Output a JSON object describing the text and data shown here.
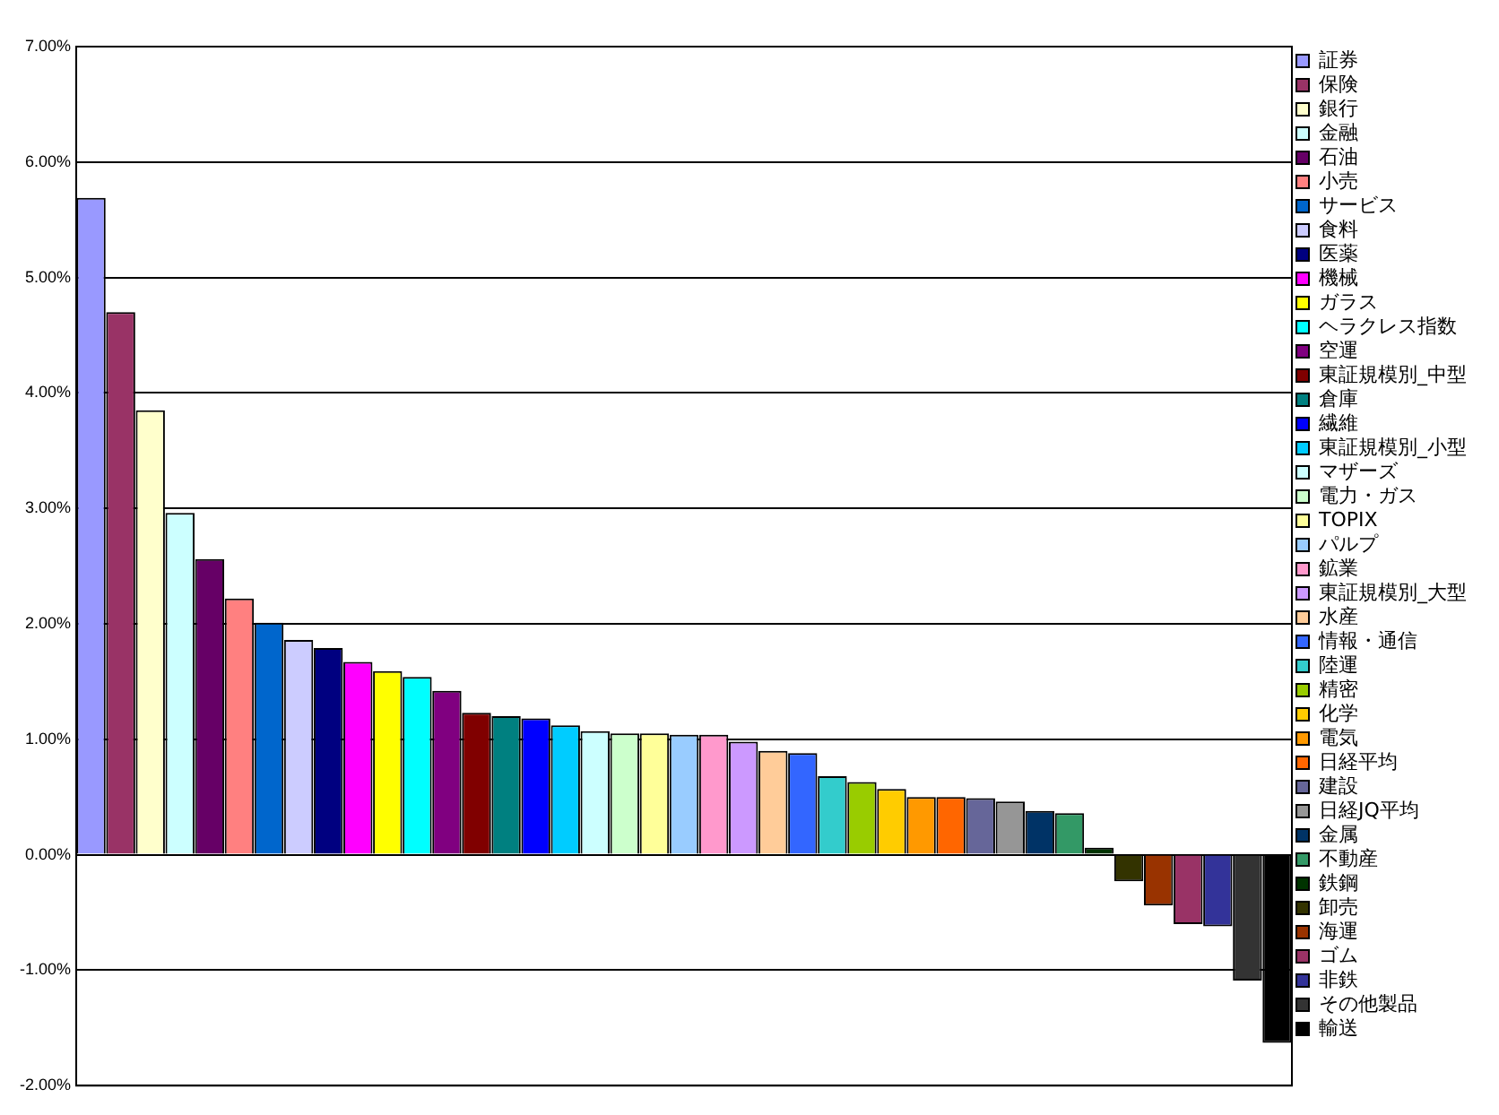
{
  "chart_data": {
    "type": "bar",
    "categories": [
      null,
      null,
      null,
      null,
      null,
      null,
      null,
      null,
      null,
      null,
      null,
      null,
      null,
      null,
      null,
      null,
      null,
      null,
      null,
      null,
      null,
      null,
      null,
      null,
      null,
      null,
      null,
      null,
      null,
      null,
      null,
      null,
      null,
      null,
      null,
      null,
      null,
      null,
      null,
      null,
      null
    ],
    "series": [
      {
        "name": "証券",
        "color": "#9999ff",
        "values": [
          5.69,
          null,
          null,
          null,
          null,
          null,
          null,
          null,
          null,
          null,
          null,
          null,
          null,
          null,
          null,
          null,
          null,
          null,
          null,
          null,
          null,
          null,
          null,
          null,
          null,
          null,
          null,
          null,
          null,
          null,
          null,
          null,
          null,
          null,
          null,
          null,
          null,
          null,
          null,
          null,
          null
        ]
      },
      {
        "name": "保険",
        "color": "#993366",
        "values": [
          null,
          4.7,
          null,
          null,
          null,
          null,
          null,
          null,
          null,
          null,
          null,
          null,
          null,
          null,
          null,
          null,
          null,
          null,
          null,
          null,
          null,
          null,
          null,
          null,
          null,
          null,
          null,
          null,
          null,
          null,
          null,
          null,
          null,
          null,
          null,
          null,
          null,
          null,
          null,
          null,
          null
        ]
      },
      {
        "name": "銀行",
        "color": "#ffffcc",
        "values": [
          null,
          null,
          3.85,
          null,
          null,
          null,
          null,
          null,
          null,
          null,
          null,
          null,
          null,
          null,
          null,
          null,
          null,
          null,
          null,
          null,
          null,
          null,
          null,
          null,
          null,
          null,
          null,
          null,
          null,
          null,
          null,
          null,
          null,
          null,
          null,
          null,
          null,
          null,
          null,
          null,
          null
        ]
      },
      {
        "name": "金融",
        "color": "#ccffff",
        "values": [
          null,
          null,
          null,
          2.96,
          null,
          null,
          null,
          null,
          null,
          null,
          null,
          null,
          null,
          null,
          null,
          null,
          null,
          null,
          null,
          null,
          null,
          null,
          null,
          null,
          null,
          null,
          null,
          null,
          null,
          null,
          null,
          null,
          null,
          null,
          null,
          null,
          null,
          null,
          null,
          null,
          null
        ]
      },
      {
        "name": "石油",
        "color": "#660066",
        "values": [
          null,
          null,
          null,
          null,
          2.56,
          null,
          null,
          null,
          null,
          null,
          null,
          null,
          null,
          null,
          null,
          null,
          null,
          null,
          null,
          null,
          null,
          null,
          null,
          null,
          null,
          null,
          null,
          null,
          null,
          null,
          null,
          null,
          null,
          null,
          null,
          null,
          null,
          null,
          null,
          null,
          null
        ]
      },
      {
        "name": "小売",
        "color": "#ff8080",
        "values": [
          null,
          null,
          null,
          null,
          null,
          2.22,
          null,
          null,
          null,
          null,
          null,
          null,
          null,
          null,
          null,
          null,
          null,
          null,
          null,
          null,
          null,
          null,
          null,
          null,
          null,
          null,
          null,
          null,
          null,
          null,
          null,
          null,
          null,
          null,
          null,
          null,
          null,
          null,
          null,
          null,
          null
        ]
      },
      {
        "name": "サービス",
        "color": "#0066cc",
        "values": [
          null,
          null,
          null,
          null,
          null,
          null,
          2.01,
          null,
          null,
          null,
          null,
          null,
          null,
          null,
          null,
          null,
          null,
          null,
          null,
          null,
          null,
          null,
          null,
          null,
          null,
          null,
          null,
          null,
          null,
          null,
          null,
          null,
          null,
          null,
          null,
          null,
          null,
          null,
          null,
          null,
          null
        ]
      },
      {
        "name": "食料",
        "color": "#ccccff",
        "values": [
          null,
          null,
          null,
          null,
          null,
          null,
          null,
          1.86,
          null,
          null,
          null,
          null,
          null,
          null,
          null,
          null,
          null,
          null,
          null,
          null,
          null,
          null,
          null,
          null,
          null,
          null,
          null,
          null,
          null,
          null,
          null,
          null,
          null,
          null,
          null,
          null,
          null,
          null,
          null,
          null,
          null
        ]
      },
      {
        "name": "医薬",
        "color": "#000080",
        "values": [
          null,
          null,
          null,
          null,
          null,
          null,
          null,
          null,
          1.79,
          null,
          null,
          null,
          null,
          null,
          null,
          null,
          null,
          null,
          null,
          null,
          null,
          null,
          null,
          null,
          null,
          null,
          null,
          null,
          null,
          null,
          null,
          null,
          null,
          null,
          null,
          null,
          null,
          null,
          null,
          null,
          null
        ]
      },
      {
        "name": "機械",
        "color": "#ff00ff",
        "values": [
          null,
          null,
          null,
          null,
          null,
          null,
          null,
          null,
          null,
          1.67,
          null,
          null,
          null,
          null,
          null,
          null,
          null,
          null,
          null,
          null,
          null,
          null,
          null,
          null,
          null,
          null,
          null,
          null,
          null,
          null,
          null,
          null,
          null,
          null,
          null,
          null,
          null,
          null,
          null,
          null,
          null
        ]
      },
      {
        "name": "ガラス",
        "color": "#ffff00",
        "values": [
          null,
          null,
          null,
          null,
          null,
          null,
          null,
          null,
          null,
          null,
          1.59,
          null,
          null,
          null,
          null,
          null,
          null,
          null,
          null,
          null,
          null,
          null,
          null,
          null,
          null,
          null,
          null,
          null,
          null,
          null,
          null,
          null,
          null,
          null,
          null,
          null,
          null,
          null,
          null,
          null,
          null
        ]
      },
      {
        "name": "ヘラクレス指数",
        "color": "#00ffff",
        "values": [
          null,
          null,
          null,
          null,
          null,
          null,
          null,
          null,
          null,
          null,
          null,
          1.54,
          null,
          null,
          null,
          null,
          null,
          null,
          null,
          null,
          null,
          null,
          null,
          null,
          null,
          null,
          null,
          null,
          null,
          null,
          null,
          null,
          null,
          null,
          null,
          null,
          null,
          null,
          null,
          null,
          null
        ]
      },
      {
        "name": "空運",
        "color": "#800080",
        "values": [
          null,
          null,
          null,
          null,
          null,
          null,
          null,
          null,
          null,
          null,
          null,
          null,
          1.42,
          null,
          null,
          null,
          null,
          null,
          null,
          null,
          null,
          null,
          null,
          null,
          null,
          null,
          null,
          null,
          null,
          null,
          null,
          null,
          null,
          null,
          null,
          null,
          null,
          null,
          null,
          null,
          null
        ]
      },
      {
        "name": "東証規模別_中型",
        "color": "#800000",
        "values": [
          null,
          null,
          null,
          null,
          null,
          null,
          null,
          null,
          null,
          null,
          null,
          null,
          null,
          1.23,
          null,
          null,
          null,
          null,
          null,
          null,
          null,
          null,
          null,
          null,
          null,
          null,
          null,
          null,
          null,
          null,
          null,
          null,
          null,
          null,
          null,
          null,
          null,
          null,
          null,
          null,
          null
        ]
      },
      {
        "name": "倉庫",
        "color": "#008080",
        "values": [
          null,
          null,
          null,
          null,
          null,
          null,
          null,
          null,
          null,
          null,
          null,
          null,
          null,
          null,
          1.2,
          null,
          null,
          null,
          null,
          null,
          null,
          null,
          null,
          null,
          null,
          null,
          null,
          null,
          null,
          null,
          null,
          null,
          null,
          null,
          null,
          null,
          null,
          null,
          null,
          null,
          null
        ]
      },
      {
        "name": "繊維",
        "color": "#0000ff",
        "values": [
          null,
          null,
          null,
          null,
          null,
          null,
          null,
          null,
          null,
          null,
          null,
          null,
          null,
          null,
          null,
          1.18,
          null,
          null,
          null,
          null,
          null,
          null,
          null,
          null,
          null,
          null,
          null,
          null,
          null,
          null,
          null,
          null,
          null,
          null,
          null,
          null,
          null,
          null,
          null,
          null,
          null
        ]
      },
      {
        "name": "東証規模別_小型",
        "color": "#00ccff",
        "values": [
          null,
          null,
          null,
          null,
          null,
          null,
          null,
          null,
          null,
          null,
          null,
          null,
          null,
          null,
          null,
          null,
          1.12,
          null,
          null,
          null,
          null,
          null,
          null,
          null,
          null,
          null,
          null,
          null,
          null,
          null,
          null,
          null,
          null,
          null,
          null,
          null,
          null,
          null,
          null,
          null,
          null
        ]
      },
      {
        "name": "マザーズ",
        "color": "#ccffff",
        "values": [
          null,
          null,
          null,
          null,
          null,
          null,
          null,
          null,
          null,
          null,
          null,
          null,
          null,
          null,
          null,
          null,
          null,
          1.07,
          null,
          null,
          null,
          null,
          null,
          null,
          null,
          null,
          null,
          null,
          null,
          null,
          null,
          null,
          null,
          null,
          null,
          null,
          null,
          null,
          null,
          null,
          null
        ]
      },
      {
        "name": "電力・ガス",
        "color": "#ccffcc",
        "values": [
          null,
          null,
          null,
          null,
          null,
          null,
          null,
          null,
          null,
          null,
          null,
          null,
          null,
          null,
          null,
          null,
          null,
          null,
          1.05,
          null,
          null,
          null,
          null,
          null,
          null,
          null,
          null,
          null,
          null,
          null,
          null,
          null,
          null,
          null,
          null,
          null,
          null,
          null,
          null,
          null,
          null
        ]
      },
      {
        "name": "TOPIX",
        "color": "#ffff99",
        "values": [
          null,
          null,
          null,
          null,
          null,
          null,
          null,
          null,
          null,
          null,
          null,
          null,
          null,
          null,
          null,
          null,
          null,
          null,
          null,
          1.05,
          null,
          null,
          null,
          null,
          null,
          null,
          null,
          null,
          null,
          null,
          null,
          null,
          null,
          null,
          null,
          null,
          null,
          null,
          null,
          null,
          null
        ]
      },
      {
        "name": "パルプ",
        "color": "#99ccff",
        "values": [
          null,
          null,
          null,
          null,
          null,
          null,
          null,
          null,
          null,
          null,
          null,
          null,
          null,
          null,
          null,
          null,
          null,
          null,
          null,
          null,
          1.04,
          null,
          null,
          null,
          null,
          null,
          null,
          null,
          null,
          null,
          null,
          null,
          null,
          null,
          null,
          null,
          null,
          null,
          null,
          null,
          null
        ]
      },
      {
        "name": "鉱業",
        "color": "#ff99cc",
        "values": [
          null,
          null,
          null,
          null,
          null,
          null,
          null,
          null,
          null,
          null,
          null,
          null,
          null,
          null,
          null,
          null,
          null,
          null,
          null,
          null,
          null,
          1.04,
          null,
          null,
          null,
          null,
          null,
          null,
          null,
          null,
          null,
          null,
          null,
          null,
          null,
          null,
          null,
          null,
          null,
          null,
          null
        ]
      },
      {
        "name": "東証規模別_大型",
        "color": "#cc99ff",
        "values": [
          null,
          null,
          null,
          null,
          null,
          null,
          null,
          null,
          null,
          null,
          null,
          null,
          null,
          null,
          null,
          null,
          null,
          null,
          null,
          null,
          null,
          null,
          0.98,
          null,
          null,
          null,
          null,
          null,
          null,
          null,
          null,
          null,
          null,
          null,
          null,
          null,
          null,
          null,
          null,
          null,
          null
        ]
      },
      {
        "name": "水産",
        "color": "#ffcc99",
        "values": [
          null,
          null,
          null,
          null,
          null,
          null,
          null,
          null,
          null,
          null,
          null,
          null,
          null,
          null,
          null,
          null,
          null,
          null,
          null,
          null,
          null,
          null,
          null,
          0.9,
          null,
          null,
          null,
          null,
          null,
          null,
          null,
          null,
          null,
          null,
          null,
          null,
          null,
          null,
          null,
          null,
          null
        ]
      },
      {
        "name": "情報・通信",
        "color": "#3366ff",
        "values": [
          null,
          null,
          null,
          null,
          null,
          null,
          null,
          null,
          null,
          null,
          null,
          null,
          null,
          null,
          null,
          null,
          null,
          null,
          null,
          null,
          null,
          null,
          null,
          null,
          0.88,
          null,
          null,
          null,
          null,
          null,
          null,
          null,
          null,
          null,
          null,
          null,
          null,
          null,
          null,
          null,
          null
        ]
      },
      {
        "name": "陸運",
        "color": "#33cccc",
        "values": [
          null,
          null,
          null,
          null,
          null,
          null,
          null,
          null,
          null,
          null,
          null,
          null,
          null,
          null,
          null,
          null,
          null,
          null,
          null,
          null,
          null,
          null,
          null,
          null,
          null,
          0.68,
          null,
          null,
          null,
          null,
          null,
          null,
          null,
          null,
          null,
          null,
          null,
          null,
          null,
          null,
          null
        ]
      },
      {
        "name": "精密",
        "color": "#99cc00",
        "values": [
          null,
          null,
          null,
          null,
          null,
          null,
          null,
          null,
          null,
          null,
          null,
          null,
          null,
          null,
          null,
          null,
          null,
          null,
          null,
          null,
          null,
          null,
          null,
          null,
          null,
          null,
          0.63,
          null,
          null,
          null,
          null,
          null,
          null,
          null,
          null,
          null,
          null,
          null,
          null,
          null,
          null
        ]
      },
      {
        "name": "化学",
        "color": "#ffcc00",
        "values": [
          null,
          null,
          null,
          null,
          null,
          null,
          null,
          null,
          null,
          null,
          null,
          null,
          null,
          null,
          null,
          null,
          null,
          null,
          null,
          null,
          null,
          null,
          null,
          null,
          null,
          null,
          null,
          0.57,
          null,
          null,
          null,
          null,
          null,
          null,
          null,
          null,
          null,
          null,
          null,
          null,
          null
        ]
      },
      {
        "name": "電気",
        "color": "#ff9900",
        "values": [
          null,
          null,
          null,
          null,
          null,
          null,
          null,
          null,
          null,
          null,
          null,
          null,
          null,
          null,
          null,
          null,
          null,
          null,
          null,
          null,
          null,
          null,
          null,
          null,
          null,
          null,
          null,
          null,
          0.5,
          null,
          null,
          null,
          null,
          null,
          null,
          null,
          null,
          null,
          null,
          null,
          null
        ]
      },
      {
        "name": "日経平均",
        "color": "#ff6600",
        "values": [
          null,
          null,
          null,
          null,
          null,
          null,
          null,
          null,
          null,
          null,
          null,
          null,
          null,
          null,
          null,
          null,
          null,
          null,
          null,
          null,
          null,
          null,
          null,
          null,
          null,
          null,
          null,
          null,
          null,
          0.5,
          null,
          null,
          null,
          null,
          null,
          null,
          null,
          null,
          null,
          null,
          null
        ]
      },
      {
        "name": "建設",
        "color": "#666699",
        "values": [
          null,
          null,
          null,
          null,
          null,
          null,
          null,
          null,
          null,
          null,
          null,
          null,
          null,
          null,
          null,
          null,
          null,
          null,
          null,
          null,
          null,
          null,
          null,
          null,
          null,
          null,
          null,
          null,
          null,
          null,
          0.49,
          null,
          null,
          null,
          null,
          null,
          null,
          null,
          null,
          null,
          null
        ]
      },
      {
        "name": "日経JQ平均",
        "color": "#969696",
        "values": [
          null,
          null,
          null,
          null,
          null,
          null,
          null,
          null,
          null,
          null,
          null,
          null,
          null,
          null,
          null,
          null,
          null,
          null,
          null,
          null,
          null,
          null,
          null,
          null,
          null,
          null,
          null,
          null,
          null,
          null,
          null,
          0.46,
          null,
          null,
          null,
          null,
          null,
          null,
          null,
          null,
          null
        ]
      },
      {
        "name": "金属",
        "color": "#003366",
        "values": [
          null,
          null,
          null,
          null,
          null,
          null,
          null,
          null,
          null,
          null,
          null,
          null,
          null,
          null,
          null,
          null,
          null,
          null,
          null,
          null,
          null,
          null,
          null,
          null,
          null,
          null,
          null,
          null,
          null,
          null,
          null,
          null,
          0.38,
          null,
          null,
          null,
          null,
          null,
          null,
          null,
          null
        ]
      },
      {
        "name": "不動産",
        "color": "#339966",
        "values": [
          null,
          null,
          null,
          null,
          null,
          null,
          null,
          null,
          null,
          null,
          null,
          null,
          null,
          null,
          null,
          null,
          null,
          null,
          null,
          null,
          null,
          null,
          null,
          null,
          null,
          null,
          null,
          null,
          null,
          null,
          null,
          null,
          null,
          0.36,
          null,
          null,
          null,
          null,
          null,
          null,
          null
        ]
      },
      {
        "name": "鉄鋼",
        "color": "#003300",
        "values": [
          null,
          null,
          null,
          null,
          null,
          null,
          null,
          null,
          null,
          null,
          null,
          null,
          null,
          null,
          null,
          null,
          null,
          null,
          null,
          null,
          null,
          null,
          null,
          null,
          null,
          null,
          null,
          null,
          null,
          null,
          null,
          null,
          null,
          null,
          0.06,
          null,
          null,
          null,
          null,
          null,
          null
        ]
      },
      {
        "name": "卸売",
        "color": "#333300",
        "values": [
          null,
          null,
          null,
          null,
          null,
          null,
          null,
          null,
          null,
          null,
          null,
          null,
          null,
          null,
          null,
          null,
          null,
          null,
          null,
          null,
          null,
          null,
          null,
          null,
          null,
          null,
          null,
          null,
          null,
          null,
          null,
          null,
          null,
          null,
          null,
          -0.23,
          null,
          null,
          null,
          null,
          null
        ]
      },
      {
        "name": "海運",
        "color": "#993300",
        "values": [
          null,
          null,
          null,
          null,
          null,
          null,
          null,
          null,
          null,
          null,
          null,
          null,
          null,
          null,
          null,
          null,
          null,
          null,
          null,
          null,
          null,
          null,
          null,
          null,
          null,
          null,
          null,
          null,
          null,
          null,
          null,
          null,
          null,
          null,
          null,
          null,
          -0.44,
          null,
          null,
          null,
          null
        ]
      },
      {
        "name": "ゴム",
        "color": "#993366",
        "values": [
          null,
          null,
          null,
          null,
          null,
          null,
          null,
          null,
          null,
          null,
          null,
          null,
          null,
          null,
          null,
          null,
          null,
          null,
          null,
          null,
          null,
          null,
          null,
          null,
          null,
          null,
          null,
          null,
          null,
          null,
          null,
          null,
          null,
          null,
          null,
          null,
          null,
          -0.6,
          null,
          null,
          null
        ]
      },
      {
        "name": "非鉄",
        "color": "#333399",
        "values": [
          null,
          null,
          null,
          null,
          null,
          null,
          null,
          null,
          null,
          null,
          null,
          null,
          null,
          null,
          null,
          null,
          null,
          null,
          null,
          null,
          null,
          null,
          null,
          null,
          null,
          null,
          null,
          null,
          null,
          null,
          null,
          null,
          null,
          null,
          null,
          null,
          null,
          null,
          -0.62,
          null,
          null
        ]
      },
      {
        "name": "その他製品",
        "color": "#333333",
        "values": [
          null,
          null,
          null,
          null,
          null,
          null,
          null,
          null,
          null,
          null,
          null,
          null,
          null,
          null,
          null,
          null,
          null,
          null,
          null,
          null,
          null,
          null,
          null,
          null,
          null,
          null,
          null,
          null,
          null,
          null,
          null,
          null,
          null,
          null,
          null,
          null,
          null,
          null,
          null,
          -1.09,
          null
        ]
      },
      {
        "name": "輸送",
        "color": "#000000",
        "values": [
          null,
          null,
          null,
          null,
          null,
          null,
          null,
          null,
          null,
          null,
          null,
          null,
          null,
          null,
          null,
          null,
          null,
          null,
          null,
          null,
          null,
          null,
          null,
          null,
          null,
          null,
          null,
          null,
          null,
          null,
          null,
          null,
          null,
          null,
          null,
          null,
          null,
          null,
          null,
          null,
          -1.63
        ]
      }
    ],
    "ylim": [
      -2,
      7
    ],
    "yticks": [
      {
        "value": -2,
        "label": "-2.00%"
      },
      {
        "value": -1,
        "label": "-1.00%"
      },
      {
        "value": 0,
        "label": "0.00%"
      },
      {
        "value": 1,
        "label": "1.00%"
      },
      {
        "value": 2,
        "label": "2.00%"
      },
      {
        "value": 3,
        "label": "3.00%"
      },
      {
        "value": 4,
        "label": "4.00%"
      },
      {
        "value": 5,
        "label": "5.00%"
      },
      {
        "value": 6,
        "label": "6.00%"
      },
      {
        "value": 7,
        "label": "7.00%"
      }
    ],
    "grid": "y",
    "legend": "right",
    "tick_labels": "y"
  }
}
